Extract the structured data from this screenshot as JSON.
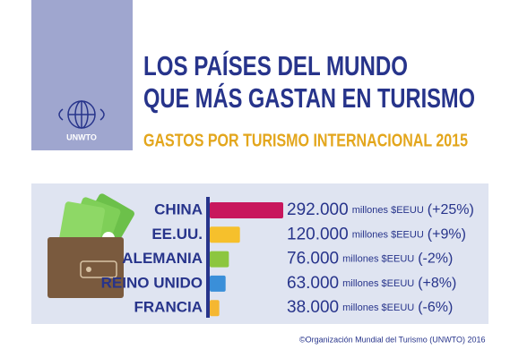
{
  "logo": "UNWTO",
  "source": "©Organización Mundial del Turismo (UNWTO) 2016",
  "chart_data": {
    "type": "bar",
    "title": [
      "LOS PAÍSES DEL MUNDO",
      "QUE MÁS GASTAN EN TURISMO"
    ],
    "subtitle": "GASTOS POR TURISMO INTERNACIONAL 2015",
    "categories": [
      "CHINA",
      "EE.UU.",
      "ALEMANIA",
      "REINO UNIDO",
      "FRANCIA"
    ],
    "values": [
      292000,
      120000,
      76000,
      63000,
      38000
    ],
    "value_labels": [
      "292.000",
      "120.000",
      "76.000",
      "63.000",
      "38.000"
    ],
    "unit": "millones $EEUU",
    "change_labels": [
      "(+25%)",
      "(+9%)",
      "(-2%)",
      "(+8%)",
      "(-6%)"
    ],
    "colors": [
      "#c8175d",
      "#f6c02c",
      "#8cc63f",
      "#3a8fd9",
      "#f5b731"
    ]
  }
}
